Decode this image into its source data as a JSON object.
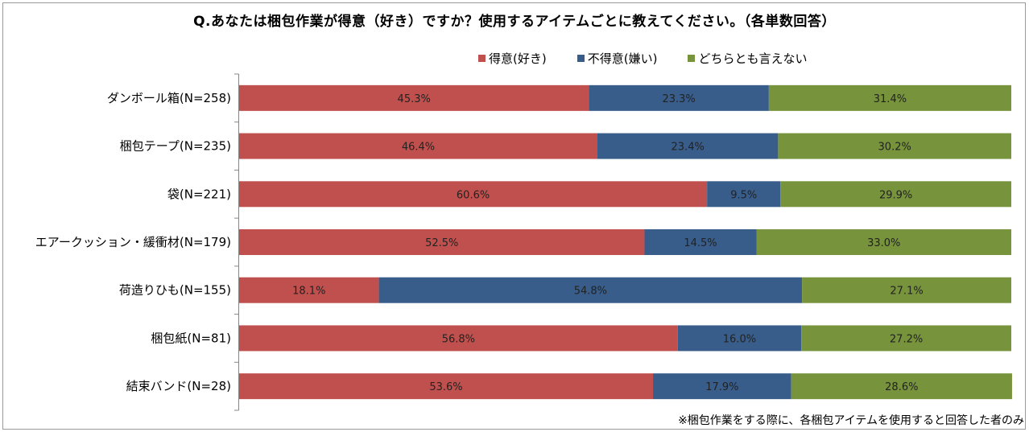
{
  "title": "Q.あなたは梱包作業が得意（好き）ですか？使用するアイテムごとに教えてください。（各単数回答）",
  "footnote": "※梱包作業をする際に、各梱包アイテムを使用すると回答した者のみ",
  "chart_data": {
    "type": "bar",
    "orientation": "horizontal",
    "stacked": "100%",
    "categories": [
      "ダンボール箱(N=258)",
      "梱包テープ(N=235)",
      "袋(N=221)",
      "エアークッション・緩衝材(N=179)",
      "荷造りひも(N=155)",
      "梱包紙(N=81)",
      "結束バンド(N=28)"
    ],
    "series": [
      {
        "name": "得意(好き)",
        "color": "#c0504d",
        "values": [
          45.3,
          46.4,
          60.6,
          52.5,
          18.1,
          56.8,
          53.6
        ]
      },
      {
        "name": "不得意(嫌い)",
        "color": "#385d8a",
        "values": [
          23.3,
          23.4,
          9.5,
          14.5,
          54.8,
          16.0,
          17.9
        ]
      },
      {
        "name": "どちらとも言えない",
        "color": "#77933c",
        "values": [
          31.4,
          30.2,
          29.9,
          33.0,
          27.1,
          27.2,
          28.6
        ]
      }
    ],
    "value_format": "%",
    "xlim": [
      0,
      100
    ],
    "legend_position": "top-right",
    "grid": false
  }
}
